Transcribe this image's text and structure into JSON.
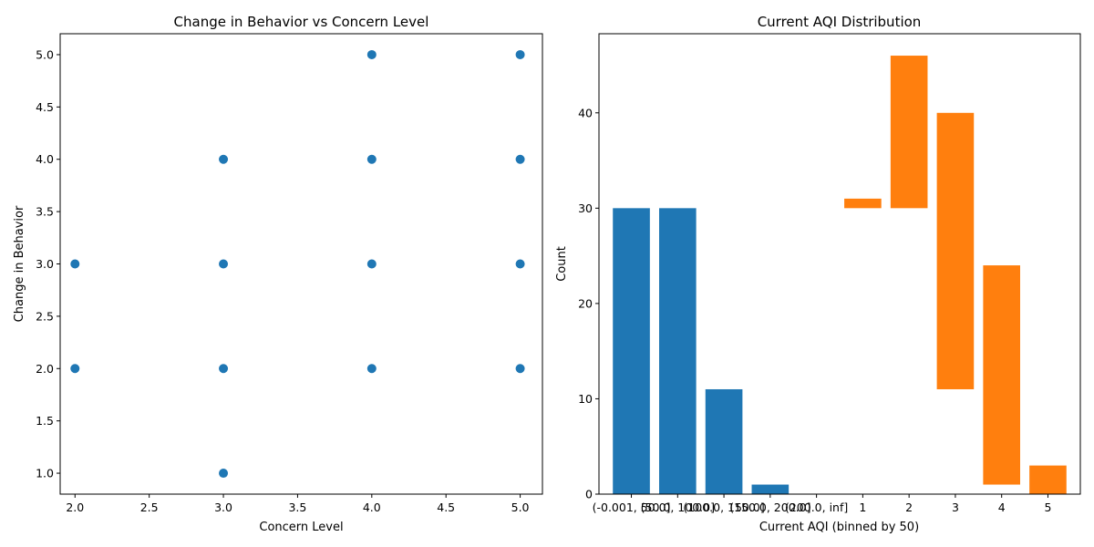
{
  "chart_data": [
    {
      "type": "scatter",
      "title": "Change in Behavior vs Concern Level",
      "xlabel": "Concern Level",
      "ylabel": "Change in Behavior",
      "xlim": [
        1.9,
        5.15
      ],
      "ylim": [
        0.8,
        5.2
      ],
      "xticks": [
        "2.0",
        "2.5",
        "3.0",
        "3.5",
        "4.0",
        "4.5",
        "5.0"
      ],
      "yticks": [
        "1.0",
        "1.5",
        "2.0",
        "2.5",
        "3.0",
        "3.5",
        "4.0",
        "4.5",
        "5.0"
      ],
      "color": "#1f77b4",
      "points": [
        {
          "x": 2,
          "y": 3
        },
        {
          "x": 2,
          "y": 2
        },
        {
          "x": 3,
          "y": 4
        },
        {
          "x": 3,
          "y": 3
        },
        {
          "x": 3,
          "y": 2
        },
        {
          "x": 3,
          "y": 1
        },
        {
          "x": 4,
          "y": 5
        },
        {
          "x": 4,
          "y": 4
        },
        {
          "x": 4,
          "y": 3
        },
        {
          "x": 4,
          "y": 2
        },
        {
          "x": 5,
          "y": 5
        },
        {
          "x": 5,
          "y": 4
        },
        {
          "x": 5,
          "y": 3
        },
        {
          "x": 5,
          "y": 2
        }
      ]
    },
    {
      "type": "bar",
      "title": "Current AQI Distribution",
      "xlabel": "Current AQI (binned by 50)",
      "ylabel": "Count",
      "ylim": [
        0,
        48.3
      ],
      "yticks": [
        "0",
        "10",
        "20",
        "30",
        "40"
      ],
      "categories": [
        "(-0.001, 50.0]",
        "(50.0, 100.0]",
        "(100.0, 150.0]",
        "(150.0, 200.0]",
        "(200.0, inf]",
        "1",
        "2",
        "3",
        "4",
        "5"
      ],
      "series": [
        {
          "color": "#1f77b4",
          "bars": [
            {
              "category": "(-0.001, 50.0]",
              "bottom": 0,
              "top": 30
            },
            {
              "category": "(50.0, 100.0]",
              "bottom": 0,
              "top": 30
            },
            {
              "category": "(100.0, 150.0]",
              "bottom": 0,
              "top": 11
            },
            {
              "category": "(150.0, 200.0]",
              "bottom": 0,
              "top": 1
            },
            {
              "category": "(200.0, inf]",
              "bottom": 0,
              "top": 0
            }
          ]
        },
        {
          "color": "#ff7f0e",
          "bars": [
            {
              "category": "1",
              "bottom": 30,
              "top": 31
            },
            {
              "category": "2",
              "bottom": 30,
              "top": 46
            },
            {
              "category": "3",
              "bottom": 11,
              "top": 40
            },
            {
              "category": "4",
              "bottom": 1,
              "top": 24
            },
            {
              "category": "5",
              "bottom": 0,
              "top": 3
            }
          ]
        }
      ]
    }
  ]
}
